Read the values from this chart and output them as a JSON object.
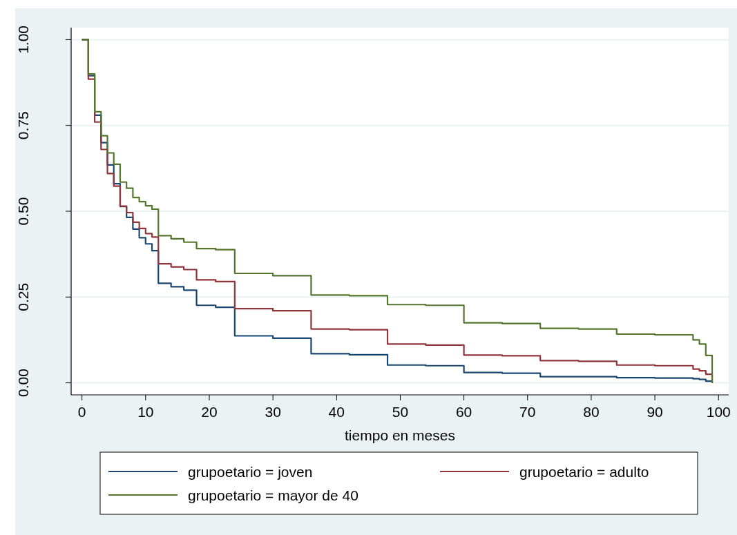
{
  "chart_data": {
    "type": "step",
    "xlabel": "tiempo en meses",
    "x": [
      0,
      1,
      2,
      3,
      4,
      5,
      6,
      7,
      8,
      9,
      10,
      11,
      12,
      14,
      16,
      18,
      21,
      24,
      30,
      36,
      42,
      48,
      54,
      60,
      66,
      72,
      78,
      84,
      90,
      96,
      97,
      98,
      99
    ],
    "series": [
      {
        "name": "grupoetario = joven",
        "color": "#1a476f",
        "values": [
          1,
          0.895,
          0.78,
          0.7,
          0.635,
          0.58,
          0.514,
          0.482,
          0.448,
          0.423,
          0.405,
          0.385,
          0.29,
          0.28,
          0.27,
          0.226,
          0.22,
          0.137,
          0.13,
          0.085,
          0.082,
          0.052,
          0.05,
          0.03,
          0.028,
          0.018,
          0.018,
          0.015,
          0.014,
          0.012,
          0.01,
          0.005,
          0
        ]
      },
      {
        "name": "grupoetario = adulto",
        "color": "#90353b",
        "values": [
          1,
          0.885,
          0.76,
          0.68,
          0.61,
          0.573,
          0.515,
          0.496,
          0.468,
          0.45,
          0.435,
          0.425,
          0.347,
          0.338,
          0.33,
          0.3,
          0.295,
          0.216,
          0.21,
          0.157,
          0.155,
          0.113,
          0.11,
          0.081,
          0.079,
          0.065,
          0.063,
          0.052,
          0.05,
          0.04,
          0.035,
          0.025,
          0
        ]
      },
      {
        "name": "grupoetario = mayor de 40",
        "color": "#55752f",
        "values": [
          1,
          0.9,
          0.79,
          0.72,
          0.67,
          0.637,
          0.585,
          0.567,
          0.54,
          0.528,
          0.516,
          0.506,
          0.429,
          0.42,
          0.41,
          0.391,
          0.388,
          0.319,
          0.312,
          0.256,
          0.254,
          0.228,
          0.226,
          0.175,
          0.173,
          0.159,
          0.157,
          0.142,
          0.14,
          0.125,
          0.113,
          0.08,
          0
        ]
      }
    ],
    "xlim": [
      -1.7,
      101.6
    ],
    "xticks": [
      0,
      10,
      20,
      30,
      40,
      50,
      60,
      70,
      80,
      90,
      100
    ],
    "ylim": [
      -0.035,
      1.035
    ],
    "yticks": [
      {
        "value": 0,
        "label": "0.00"
      },
      {
        "value": 0.25,
        "label": "0.25"
      },
      {
        "value": 0.5,
        "label": "0.50"
      },
      {
        "value": 0.75,
        "label": "0.75"
      },
      {
        "value": 1,
        "label": "1.00"
      }
    ],
    "grid": "y",
    "legend": "bottom",
    "line_style": "solid"
  }
}
